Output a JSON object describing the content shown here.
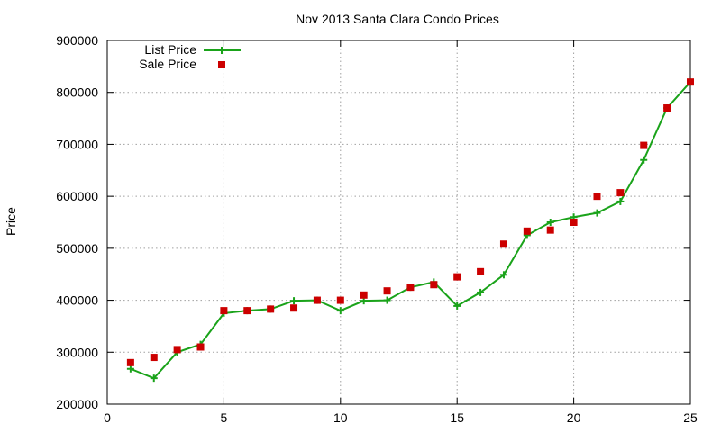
{
  "chart_data": {
    "type": "line",
    "title": "Nov 2013 Santa Clara Condo Prices",
    "xlabel": "",
    "ylabel": "Price",
    "xlim": [
      0,
      25
    ],
    "ylim": [
      200000,
      900000
    ],
    "x_ticks": [
      0,
      5,
      10,
      15,
      20,
      25
    ],
    "x_tick_labels": [
      "0",
      "5",
      "10",
      "15",
      "20",
      "25"
    ],
    "y_ticks": [
      200000,
      300000,
      400000,
      500000,
      600000,
      700000,
      800000,
      900000
    ],
    "y_tick_labels": [
      "200000",
      "300000",
      "400000",
      "500000",
      "600000",
      "700000",
      "800000",
      "900000"
    ],
    "grid": true,
    "legend_position": "top-left",
    "series": [
      {
        "name": "List Price",
        "style": "line-plus",
        "color": "#1aa31a",
        "x": [
          1,
          2,
          3,
          4,
          5,
          6,
          7,
          8,
          9,
          10,
          11,
          12,
          13,
          14,
          15,
          16,
          17,
          18,
          19,
          20,
          21,
          22,
          23,
          24,
          25
        ],
        "y": [
          268000,
          250000,
          300000,
          315000,
          375000,
          380000,
          383000,
          399000,
          400000,
          380000,
          399000,
          400000,
          425000,
          435000,
          389000,
          415000,
          449000,
          525000,
          550000,
          560000,
          568000,
          590000,
          670000,
          770000,
          820000
        ]
      },
      {
        "name": "Sale Price",
        "style": "square-points",
        "color": "#cc0000",
        "x": [
          1,
          2,
          3,
          4,
          5,
          6,
          7,
          8,
          9,
          10,
          11,
          12,
          13,
          14,
          15,
          16,
          17,
          18,
          19,
          20,
          21,
          22,
          23,
          24,
          25
        ],
        "y": [
          280000,
          290000,
          305000,
          310000,
          380000,
          380000,
          383000,
          385000,
          400000,
          400000,
          410000,
          418000,
          425000,
          430000,
          445000,
          455000,
          508000,
          533000,
          535000,
          550000,
          600000,
          607000,
          698000,
          770000,
          820000
        ]
      }
    ]
  }
}
